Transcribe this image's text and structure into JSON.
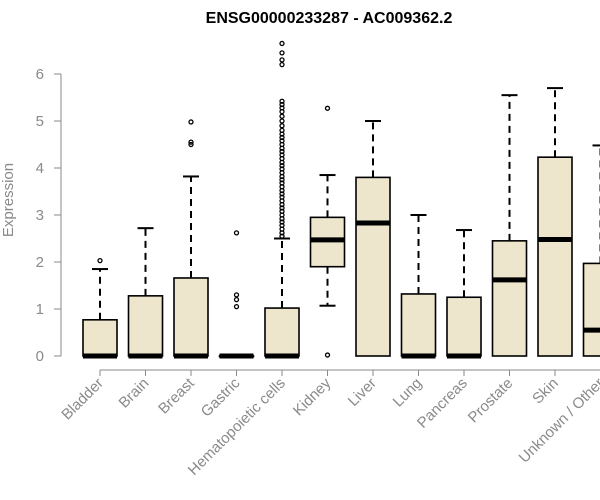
{
  "chart_data": {
    "type": "box",
    "title": "ENSG00000233287 - AC009362.2",
    "ylabel": "Expression",
    "xlabel": "",
    "ylim": [
      0,
      6.8
    ],
    "yticks": [
      0,
      1,
      2,
      3,
      4,
      5,
      6
    ],
    "grid": false,
    "colors": {
      "box_fill": "#ede6cc",
      "stroke": "#000000",
      "axis": "#8a8a8a"
    },
    "categories": [
      "Bladder",
      "Brain",
      "Breast",
      "Gastric",
      "Hematopoietic cells",
      "Kidney",
      "Liver",
      "Lung",
      "Pancreas",
      "Prostate",
      "Skin",
      "Unknown / Other"
    ],
    "boxes": [
      {
        "min": 0,
        "q1": 0,
        "median": 0,
        "q3": 0.77,
        "max": 1.85,
        "outliers": [
          2.03
        ]
      },
      {
        "min": 0,
        "q1": 0,
        "median": 0,
        "q3": 1.28,
        "max": 2.72,
        "outliers": []
      },
      {
        "min": 0,
        "q1": 0,
        "median": 0,
        "q3": 1.66,
        "max": 3.82,
        "outliers": [
          4.5,
          4.55,
          4.98
        ]
      },
      {
        "min": 0,
        "q1": 0,
        "median": 0,
        "q3": 0,
        "max": 0,
        "outliers": [
          1.05,
          1.2,
          1.3,
          2.62
        ]
      },
      {
        "min": 0,
        "q1": 0,
        "median": 0,
        "q3": 1.02,
        "max": 2.5,
        "outliers": [
          2.55,
          2.62,
          2.7,
          2.78,
          2.85,
          2.92,
          3.0,
          3.08,
          3.15,
          3.22,
          3.3,
          3.38,
          3.45,
          3.52,
          3.6,
          3.68,
          3.75,
          3.82,
          3.9,
          3.98,
          4.05,
          4.12,
          4.2,
          4.28,
          4.35,
          4.42,
          4.5,
          4.58,
          4.65,
          4.72,
          4.8,
          4.9,
          5.0,
          5.1,
          5.2,
          5.28,
          5.35,
          5.42,
          6.2,
          6.3,
          6.45,
          6.65
        ]
      },
      {
        "min": 1.07,
        "q1": 1.9,
        "median": 2.47,
        "q3": 2.95,
        "max": 3.85,
        "outliers": [
          5.27,
          0.02
        ]
      },
      {
        "min": 0,
        "q1": 0,
        "median": 2.83,
        "q3": 3.8,
        "max": 5.0,
        "outliers": []
      },
      {
        "min": 0,
        "q1": 0,
        "median": 0,
        "q3": 1.32,
        "max": 3.0,
        "outliers": []
      },
      {
        "min": 0,
        "q1": 0,
        "median": 0,
        "q3": 1.25,
        "max": 2.68,
        "outliers": []
      },
      {
        "min": 0,
        "q1": 0,
        "median": 1.62,
        "q3": 2.45,
        "max": 5.55,
        "outliers": []
      },
      {
        "min": 0,
        "q1": 0,
        "median": 2.48,
        "q3": 4.23,
        "max": 5.7,
        "outliers": []
      },
      {
        "min": 0,
        "q1": 0,
        "median": 0.55,
        "q3": 1.97,
        "max": 4.48,
        "outliers": []
      }
    ]
  }
}
